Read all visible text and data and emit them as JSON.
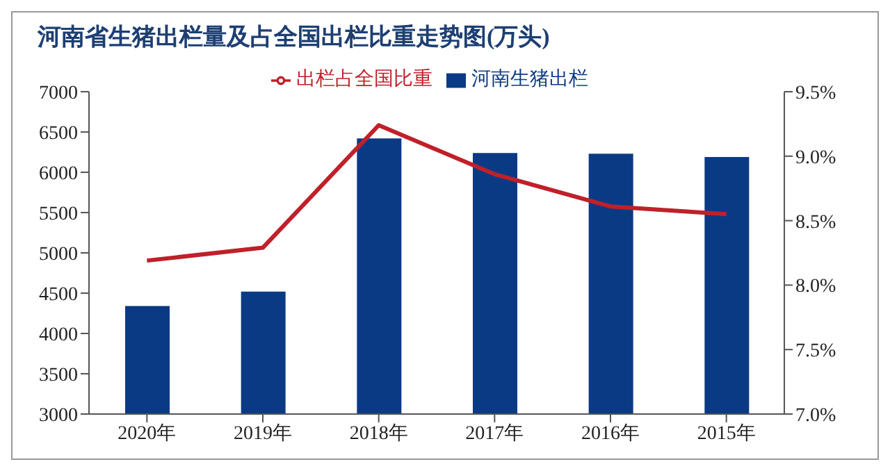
{
  "chart_data": {
    "type": "bar",
    "title": "河南省生猪出栏量及占全国出栏比重走势图(万头)",
    "categories": [
      "2020年",
      "2019年",
      "2018年",
      "2017年",
      "2016年",
      "2015年"
    ],
    "series": [
      {
        "name": "河南生猪出栏",
        "color": "#0b3a84",
        "values": [
          4340,
          4520,
          6420,
          6240,
          6230,
          6190
        ]
      },
      {
        "name": "出栏占全国比重",
        "type": "line",
        "axis": "y2",
        "color": "#c0202a",
        "values": [
          8.19,
          8.29,
          9.24,
          8.86,
          8.61,
          8.55
        ],
        "marker": "none"
      }
    ],
    "ylim": [
      3000,
      7000
    ],
    "yticks": [
      3000,
      3500,
      4000,
      4500,
      5000,
      5500,
      6000,
      6500,
      7000
    ],
    "y2lim": [
      7.0,
      9.5
    ],
    "y2ticks": [
      {
        "value": 7.0,
        "label": "7.0%"
      },
      {
        "value": 7.5,
        "label": "7.5%"
      },
      {
        "value": 8.0,
        "label": "8.0%"
      },
      {
        "value": 8.5,
        "label": "8.5%"
      },
      {
        "value": 9.0,
        "label": "9.0%"
      },
      {
        "value": 9.5,
        "label": "9.5%"
      }
    ],
    "grid": false,
    "legend": "top"
  }
}
